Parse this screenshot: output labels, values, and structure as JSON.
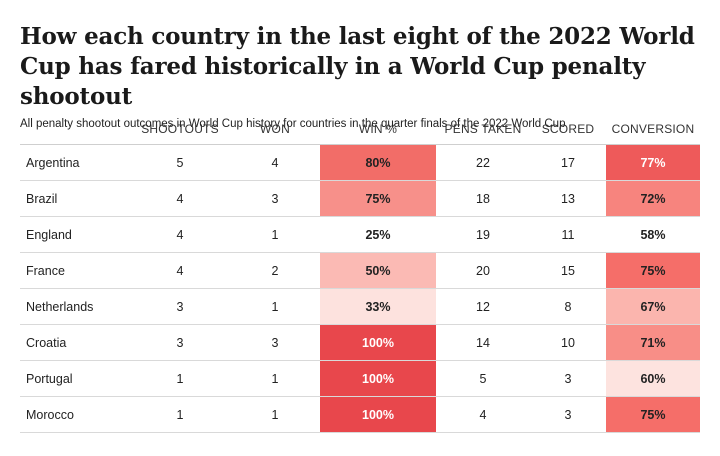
{
  "header": {
    "title": "How each country in the last eight of the 2022 World Cup has fared historically in a World Cup penalty shootout",
    "subtitle": "All penalty shootout outcomes in World Cup history for countries in the quarter finals of the 2022 World Cup"
  },
  "chart_data": {
    "type": "table",
    "columns": [
      "",
      "SHOOTOUTS",
      "WON",
      "WIN %",
      "PENS TAKEN",
      "SCORED",
      "CONVERSION"
    ],
    "rows": [
      {
        "country": "Argentina",
        "shootouts": 5,
        "won": 4,
        "win_pct": 80,
        "win_label": "80%",
        "pens": 22,
        "scored": 17,
        "conv": 77,
        "conv_label": "77%"
      },
      {
        "country": "Brazil",
        "shootouts": 4,
        "won": 3,
        "win_pct": 75,
        "win_label": "75%",
        "pens": 18,
        "scored": 13,
        "conv": 72,
        "conv_label": "72%"
      },
      {
        "country": "England",
        "shootouts": 4,
        "won": 1,
        "win_pct": 25,
        "win_label": "25%",
        "pens": 19,
        "scored": 11,
        "conv": 58,
        "conv_label": "58%"
      },
      {
        "country": "France",
        "shootouts": 4,
        "won": 2,
        "win_pct": 50,
        "win_label": "50%",
        "pens": 20,
        "scored": 15,
        "conv": 75,
        "conv_label": "75%"
      },
      {
        "country": "Netherlands",
        "shootouts": 3,
        "won": 1,
        "win_pct": 33,
        "win_label": "33%",
        "pens": 12,
        "scored": 8,
        "conv": 67,
        "conv_label": "67%"
      },
      {
        "country": "Croatia",
        "shootouts": 3,
        "won": 3,
        "win_pct": 100,
        "win_label": "100%",
        "pens": 14,
        "scored": 10,
        "conv": 71,
        "conv_label": "71%"
      },
      {
        "country": "Portugal",
        "shootouts": 1,
        "won": 1,
        "win_pct": 100,
        "win_label": "100%",
        "pens": 5,
        "scored": 3,
        "conv": 60,
        "conv_label": "60%"
      },
      {
        "country": "Morocco",
        "shootouts": 1,
        "won": 1,
        "win_pct": 100,
        "win_label": "100%",
        "pens": 4,
        "scored": 3,
        "conv": 75,
        "conv_label": "75%"
      }
    ],
    "heat_colors": {
      "win_pct": {
        "100": "#e8474c",
        "80": "#f26d68",
        "75": "#f7908a",
        "50": "#fbbab4",
        "33": "#fde2de",
        "25": "#ffffff"
      },
      "conv": {
        "77": "#ee5a5a",
        "75": "#f56e69",
        "72": "#f7847e",
        "71": "#f88e87",
        "67": "#fbb5ae",
        "60": "#fde3df",
        "58": "#ffffff"
      }
    },
    "heat_text_light_threshold": {
      "win_pct": 100,
      "conv": 77
    }
  }
}
